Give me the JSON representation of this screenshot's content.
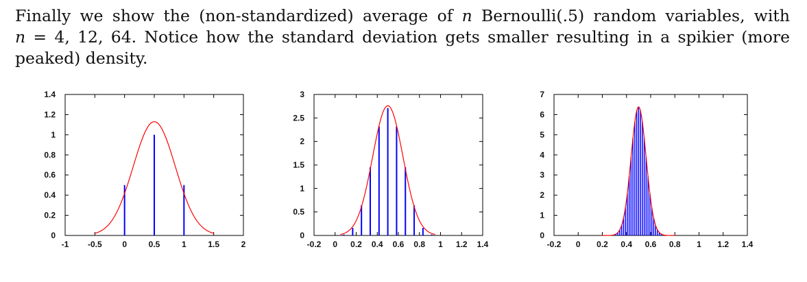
{
  "paragraph": {
    "line1": "Finally we show the (non-standardized) average of n Bernoulli(.5) random variables, with",
    "line2": "n = 4, 12, 64.  Notice how the standard deviation gets smaller resulting in a spikier (more",
    "line3": "peaked) density.",
    "l1a": "Finally we show the (non-standardized) average of ",
    "l1n": "n",
    "l1b": " Bernoulli(.5) random variables, with",
    "l2n": "n",
    "l2b": " = 4, 12, 64.  Notice how the standard deviation gets smaller resulting in a spikier (more",
    "l3": "peaked) density."
  },
  "colors": {
    "curve": "#ff0000",
    "bars": "#0000ff",
    "axis": "#000000"
  },
  "chart_data": [
    {
      "type": "bar",
      "n": 4,
      "xlim": [
        -1,
        2
      ],
      "ylim": [
        0,
        1.4
      ],
      "xticks": [
        "-1",
        "-0.5",
        "0",
        "0.5",
        "1",
        "1.5",
        "2"
      ],
      "xtick_values": [
        -1,
        -0.5,
        0,
        0.5,
        1,
        1.5,
        2
      ],
      "yticks": [
        "0",
        "0.2",
        "0.4",
        "0.6",
        "0.8",
        "1",
        "1.2",
        "1.4"
      ],
      "ytick_values": [
        0,
        0.2,
        0.4,
        0.6,
        0.8,
        1,
        1.2,
        1.4
      ],
      "bars": {
        "x": [
          0,
          0.5,
          1
        ],
        "y": [
          0.5,
          1.0,
          0.5
        ]
      },
      "curve": {
        "type": "normal",
        "mean": 0.5,
        "sd": 0.354,
        "peak": 1.13,
        "x_range": [
          -0.5,
          1.5
        ]
      }
    },
    {
      "type": "bar",
      "n": 12,
      "xlim": [
        -0.2,
        1.4
      ],
      "ylim": [
        0,
        3
      ],
      "xticks": [
        "-0.2",
        "0",
        "0.2",
        "0.4",
        "0.6",
        "0.8",
        "1",
        "1.2",
        "1.4"
      ],
      "xtick_values": [
        -0.2,
        0,
        0.2,
        0.4,
        0.6,
        0.8,
        1,
        1.2,
        1.4
      ],
      "yticks": [
        "0",
        "0.5",
        "1",
        "1.5",
        "2",
        "2.5",
        "3"
      ],
      "ytick_values": [
        0,
        0.5,
        1,
        1.5,
        2,
        2.5,
        3
      ],
      "bars": {
        "x": [
          0.0833,
          0.1667,
          0.25,
          0.3333,
          0.4167,
          0.5,
          0.5833,
          0.6667,
          0.75,
          0.8333,
          0.9167
        ],
        "y": [
          0.02,
          0.16,
          0.64,
          1.45,
          2.32,
          2.71,
          2.32,
          1.45,
          0.64,
          0.16,
          0.02
        ]
      },
      "curve": {
        "type": "normal",
        "mean": 0.5,
        "sd": 0.144,
        "peak": 2.76,
        "x_range": [
          0.05,
          0.95
        ]
      }
    },
    {
      "type": "bar",
      "n": 64,
      "xlim": [
        -0.2,
        1.4
      ],
      "ylim": [
        0,
        7
      ],
      "xticks": [
        "-0.2",
        "0",
        "0.2",
        "0.4",
        "0.6",
        "0.8",
        "1",
        "1.2",
        "1.4"
      ],
      "xtick_values": [
        -0.2,
        0,
        0.2,
        0.4,
        0.6,
        0.8,
        1,
        1.2,
        1.4
      ],
      "yticks": [
        "0",
        "1",
        "2",
        "3",
        "4",
        "5",
        "6",
        "7"
      ],
      "ytick_values": [
        0,
        1,
        2,
        3,
        4,
        5,
        6,
        7
      ],
      "bars": {
        "n": 64,
        "peak": 6.4,
        "sd": 0.0625,
        "mean": 0.5
      },
      "curve": {
        "type": "normal",
        "mean": 0.5,
        "sd": 0.0625,
        "peak": 6.38,
        "x_range": [
          0.2,
          0.8
        ]
      }
    }
  ]
}
